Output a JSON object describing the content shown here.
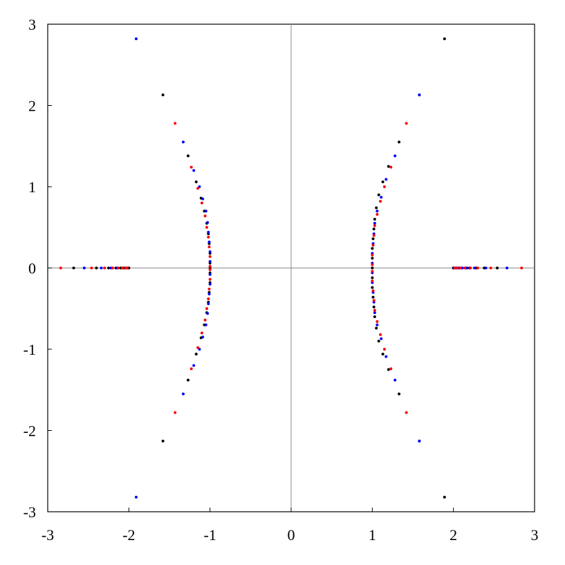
{
  "chart_data": {
    "type": "scatter",
    "title": "",
    "xlabel": "",
    "ylabel": "",
    "xlim": [
      -3,
      3
    ],
    "ylim": [
      -3,
      3
    ],
    "grid": false,
    "legend": "none",
    "x_ticks": [
      "-3",
      "-2",
      "-1",
      "0",
      "1",
      "2",
      "3"
    ],
    "y_ticks": [
      "3",
      "2",
      "1",
      "0",
      "-1",
      "-2",
      "-3"
    ],
    "series": [
      {
        "color": "#000000",
        "points": [
          [
            1.89,
            2.82
          ],
          [
            1.58,
            2.13
          ],
          [
            1.33,
            1.55
          ],
          [
            1.2,
            1.25
          ],
          [
            1.13,
            1.06
          ],
          [
            1.08,
            0.9
          ],
          [
            1.05,
            0.74
          ],
          [
            1.03,
            0.6
          ],
          [
            1.02,
            0.48
          ],
          [
            1.01,
            0.36
          ],
          [
            1.0,
            0.24
          ],
          [
            1.0,
            0.12
          ],
          [
            1.0,
            0.0
          ],
          [
            1.89,
            -2.82
          ],
          [
            1.58,
            -2.13
          ],
          [
            1.33,
            -1.55
          ],
          [
            1.2,
            -1.25
          ],
          [
            1.13,
            -1.06
          ],
          [
            1.08,
            -0.9
          ],
          [
            1.05,
            -0.74
          ],
          [
            1.03,
            -0.6
          ],
          [
            1.02,
            -0.48
          ],
          [
            1.01,
            -0.36
          ],
          [
            1.0,
            -0.24
          ],
          [
            1.0,
            -0.12
          ],
          [
            -1.58,
            2.13
          ],
          [
            -1.27,
            1.38
          ],
          [
            -1.17,
            1.06
          ],
          [
            -1.11,
            0.86
          ],
          [
            -1.07,
            0.7
          ],
          [
            -1.04,
            0.55
          ],
          [
            -1.02,
            0.42
          ],
          [
            -1.01,
            0.3
          ],
          [
            -1.0,
            0.18
          ],
          [
            -1.0,
            0.06
          ],
          [
            -1.0,
            0.0
          ],
          [
            -1.58,
            -2.13
          ],
          [
            -1.27,
            -1.38
          ],
          [
            -1.17,
            -1.06
          ],
          [
            -1.11,
            -0.86
          ],
          [
            -1.07,
            -0.7
          ],
          [
            -1.04,
            -0.55
          ],
          [
            -1.02,
            -0.42
          ],
          [
            -1.01,
            -0.3
          ],
          [
            -1.0,
            -0.18
          ],
          [
            -1.0,
            -0.06
          ],
          [
            2.54,
            0
          ],
          [
            2.38,
            0
          ],
          [
            2.28,
            0
          ],
          [
            2.2,
            0
          ],
          [
            2.15,
            0
          ],
          [
            2.1,
            0
          ],
          [
            2.07,
            0
          ],
          [
            2.04,
            0
          ],
          [
            2.02,
            0
          ],
          [
            2.0,
            0
          ],
          [
            -2.68,
            0
          ],
          [
            -2.4,
            0
          ],
          [
            -2.25,
            0
          ],
          [
            -2.16,
            0
          ],
          [
            -2.1,
            0
          ],
          [
            -2.06,
            0
          ],
          [
            -2.03,
            0
          ],
          [
            -2.01,
            0
          ],
          [
            -2.0,
            0
          ]
        ]
      },
      {
        "color": "#0000ff",
        "points": [
          [
            1.58,
            2.13
          ],
          [
            1.28,
            1.38
          ],
          [
            1.17,
            1.09
          ],
          [
            1.11,
            0.87
          ],
          [
            1.06,
            0.7
          ],
          [
            1.03,
            0.55
          ],
          [
            1.02,
            0.42
          ],
          [
            1.01,
            0.3
          ],
          [
            1.0,
            0.18
          ],
          [
            1.0,
            0.06
          ],
          [
            1.58,
            -2.13
          ],
          [
            1.28,
            -1.38
          ],
          [
            1.17,
            -1.09
          ],
          [
            1.11,
            -0.87
          ],
          [
            1.06,
            -0.7
          ],
          [
            1.03,
            -0.55
          ],
          [
            1.02,
            -0.42
          ],
          [
            1.01,
            -0.3
          ],
          [
            1.0,
            -0.18
          ],
          [
            1.0,
            -0.06
          ],
          [
            -1.91,
            2.82
          ],
          [
            -1.33,
            1.55
          ],
          [
            -1.2,
            1.2
          ],
          [
            -1.13,
            1.0
          ],
          [
            -1.09,
            0.85
          ],
          [
            -1.05,
            0.7
          ],
          [
            -1.03,
            0.56
          ],
          [
            -1.02,
            0.44
          ],
          [
            -1.01,
            0.32
          ],
          [
            -1.0,
            0.2
          ],
          [
            -1.0,
            0.08
          ],
          [
            -1.91,
            -2.82
          ],
          [
            -1.33,
            -1.55
          ],
          [
            -1.2,
            -1.2
          ],
          [
            -1.13,
            -1.0
          ],
          [
            -1.09,
            -0.85
          ],
          [
            -1.05,
            -0.7
          ],
          [
            -1.03,
            -0.56
          ],
          [
            -1.02,
            -0.44
          ],
          [
            -1.01,
            -0.32
          ],
          [
            -1.0,
            -0.2
          ],
          [
            -1.0,
            -0.08
          ],
          [
            2.66,
            0
          ],
          [
            2.4,
            0
          ],
          [
            2.26,
            0
          ],
          [
            2.17,
            0
          ],
          [
            2.11,
            0
          ],
          [
            2.06,
            0
          ],
          [
            2.03,
            0
          ],
          [
            2.01,
            0
          ],
          [
            -2.55,
            0
          ],
          [
            -2.34,
            0
          ],
          [
            -2.22,
            0
          ],
          [
            -2.14,
            0
          ],
          [
            -2.08,
            0
          ],
          [
            -2.04,
            0
          ],
          [
            -2.02,
            0
          ]
        ]
      },
      {
        "color": "#ff0000",
        "points": [
          [
            1.42,
            1.78
          ],
          [
            1.23,
            1.24
          ],
          [
            1.15,
            1.0
          ],
          [
            1.1,
            0.82
          ],
          [
            1.06,
            0.66
          ],
          [
            1.03,
            0.52
          ],
          [
            1.02,
            0.4
          ],
          [
            1.01,
            0.28
          ],
          [
            1.0,
            0.16
          ],
          [
            1.0,
            0.04
          ],
          [
            1.42,
            -1.78
          ],
          [
            1.23,
            -1.24
          ],
          [
            1.15,
            -1.0
          ],
          [
            1.1,
            -0.82
          ],
          [
            1.06,
            -0.66
          ],
          [
            1.03,
            -0.52
          ],
          [
            1.02,
            -0.4
          ],
          [
            1.01,
            -0.28
          ],
          [
            1.0,
            -0.16
          ],
          [
            1.0,
            -0.04
          ],
          [
            -1.43,
            1.78
          ],
          [
            -1.23,
            1.24
          ],
          [
            -1.15,
            0.98
          ],
          [
            -1.1,
            0.8
          ],
          [
            -1.06,
            0.64
          ],
          [
            -1.04,
            0.5
          ],
          [
            -1.02,
            0.38
          ],
          [
            -1.01,
            0.26
          ],
          [
            -1.0,
            0.14
          ],
          [
            -1.0,
            0.02
          ],
          [
            -1.43,
            -1.78
          ],
          [
            -1.23,
            -1.24
          ],
          [
            -1.15,
            -0.98
          ],
          [
            -1.1,
            -0.8
          ],
          [
            -1.06,
            -0.64
          ],
          [
            -1.04,
            -0.5
          ],
          [
            -1.02,
            -0.38
          ],
          [
            -1.01,
            -0.26
          ],
          [
            -1.0,
            -0.14
          ],
          [
            -1.0,
            -0.02
          ],
          [
            2.84,
            0
          ],
          [
            2.46,
            0
          ],
          [
            2.3,
            0
          ],
          [
            2.21,
            0
          ],
          [
            2.14,
            0
          ],
          [
            2.09,
            0
          ],
          [
            2.05,
            0
          ],
          [
            2.02,
            0
          ],
          [
            -2.84,
            0
          ],
          [
            -2.46,
            0
          ],
          [
            -2.3,
            0
          ],
          [
            -2.2,
            0
          ],
          [
            -2.13,
            0
          ],
          [
            -2.08,
            0
          ],
          [
            -2.04,
            0
          ],
          [
            -2.02,
            0
          ]
        ]
      }
    ]
  }
}
